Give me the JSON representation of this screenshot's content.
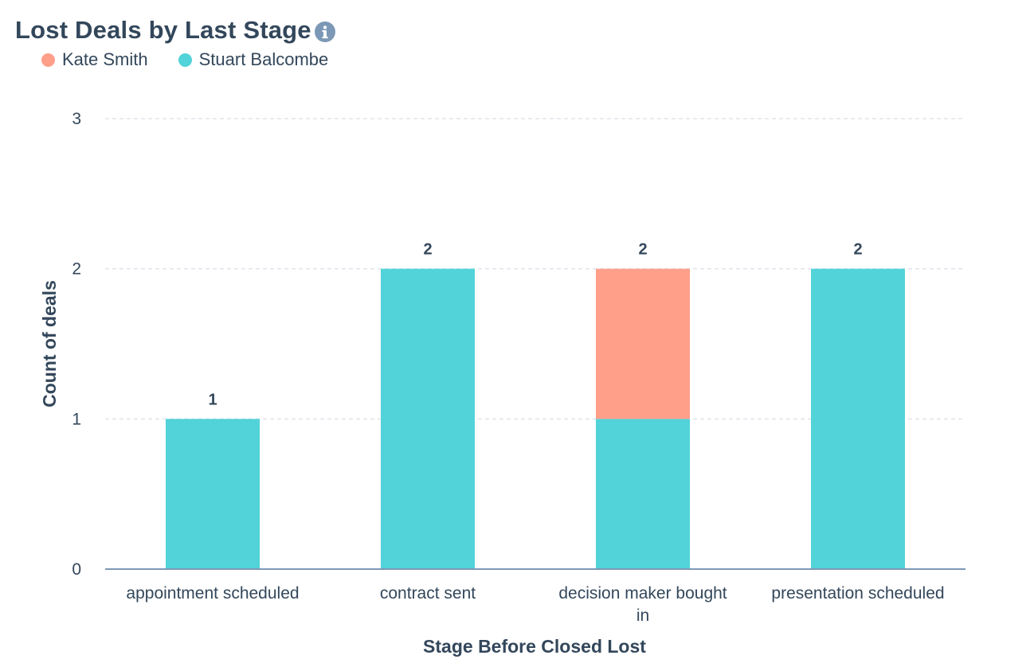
{
  "header": {
    "title": "Lost Deals by Last Stage",
    "info_icon": "info-icon"
  },
  "legend": [
    {
      "label": "Kate Smith",
      "color": "#ff9f8a"
    },
    {
      "label": "Stuart Balcombe",
      "color": "#51d3d9"
    }
  ],
  "chart_data": {
    "type": "bar",
    "stacked": true,
    "title": "Lost Deals by Last Stage",
    "xlabel": "Stage Before Closed Lost",
    "ylabel": "Count of deals",
    "categories": [
      [
        "appointment scheduled"
      ],
      [
        "contract sent"
      ],
      [
        "decision maker bought",
        "in"
      ],
      [
        "presentation scheduled"
      ]
    ],
    "series": [
      {
        "name": "Stuart Balcombe",
        "color": "#51d3d9",
        "values": [
          1,
          2,
          1,
          2
        ]
      },
      {
        "name": "Kate Smith",
        "color": "#ff9f8a",
        "values": [
          0,
          0,
          1,
          0
        ]
      }
    ],
    "totals": [
      1,
      2,
      2,
      2
    ],
    "yticks": [
      0,
      1,
      2,
      3
    ],
    "ylim": [
      0,
      3
    ],
    "grid": true,
    "legend_position": "top-left",
    "colors": {
      "axis": "#7c98b6",
      "grid": "#dfe3eb",
      "text": "#33475b"
    }
  }
}
